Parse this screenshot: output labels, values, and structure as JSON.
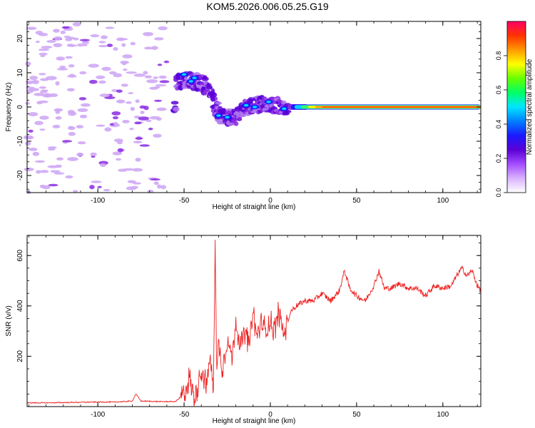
{
  "title": "KOM5.2026.006.05.25.G19",
  "chart_data": [
    {
      "type": "heatmap",
      "name": "spectrogram",
      "xlabel": "Height of straight line (km)",
      "ylabel": "Frequency (Hz)",
      "xlim": [
        -141,
        122
      ],
      "ylim": [
        -25,
        25
      ],
      "xticks": [
        -100,
        -50,
        0,
        50,
        100
      ],
      "yticks": [
        -20,
        -10,
        0,
        10,
        20
      ],
      "colorbar": {
        "label": "Normalized spectral amplitude",
        "range": [
          0,
          1
        ],
        "ticks": [
          0.0,
          0.2,
          0.4,
          0.6,
          0.8
        ],
        "colors": [
          "#ffffff",
          "#d9b3ff",
          "#a44dff",
          "#5b00d6",
          "#1a1aff",
          "#0080ff",
          "#00e5ff",
          "#00ff66",
          "#66ff00",
          "#ffff00",
          "#ff9900",
          "#ff3300",
          "#ff0066"
        ]
      },
      "noise_region_km": [
        -141,
        -55
      ],
      "signal_track": [
        {
          "x": -55,
          "y": 7
        },
        {
          "x": -48,
          "y": 8
        },
        {
          "x": -40,
          "y": 7
        },
        {
          "x": -35,
          "y": 5
        },
        {
          "x": -32,
          "y": 0
        },
        {
          "x": -28,
          "y": -3
        },
        {
          "x": -20,
          "y": -3
        },
        {
          "x": -15,
          "y": 0
        },
        {
          "x": -8,
          "y": 0.5
        },
        {
          "x": 0,
          "y": 1
        },
        {
          "x": 5,
          "y": 0
        },
        {
          "x": 10,
          "y": 0
        },
        {
          "x": 30,
          "y": 0
        },
        {
          "x": 60,
          "y": 0
        },
        {
          "x": 90,
          "y": 0
        },
        {
          "x": 122,
          "y": 0
        }
      ]
    },
    {
      "type": "line",
      "name": "snr",
      "xlabel": "Height of straight line (km)",
      "ylabel": "SNR (v/v)",
      "xlim": [
        -141,
        122
      ],
      "ylim": [
        0,
        680
      ],
      "xticks": [
        -100,
        -50,
        0,
        50,
        100
      ],
      "yticks": [
        200,
        400,
        600
      ],
      "color": "#ee2222",
      "series": [
        {
          "name": "SNR",
          "x": [
            -141,
            -130,
            -120,
            -110,
            -100,
            -90,
            -80,
            -78,
            -75,
            -65,
            -55,
            -50,
            -47,
            -44,
            -40,
            -37,
            -35,
            -33,
            -32,
            -31,
            -30,
            -28,
            -25,
            -22,
            -20,
            -17,
            -15,
            -12,
            -10,
            -8,
            -5,
            -3,
            0,
            2,
            5,
            8,
            10,
            12,
            15,
            20,
            25,
            30,
            35,
            40,
            43,
            46,
            50,
            55,
            60,
            63,
            66,
            70,
            75,
            80,
            85,
            90,
            95,
            100,
            105,
            108,
            111,
            114,
            117,
            120,
            122
          ],
          "values": [
            15,
            15,
            16,
            17,
            18,
            18,
            22,
            50,
            22,
            20,
            20,
            50,
            120,
            30,
            150,
            80,
            200,
            60,
            680,
            120,
            260,
            150,
            260,
            200,
            340,
            230,
            300,
            250,
            380,
            280,
            330,
            300,
            340,
            300,
            380,
            280,
            340,
            380,
            400,
            420,
            420,
            450,
            420,
            460,
            540,
            470,
            440,
            420,
            480,
            540,
            470,
            470,
            490,
            470,
            470,
            440,
            480,
            470,
            480,
            520,
            550,
            520,
            540,
            480,
            460
          ]
        }
      ]
    }
  ]
}
